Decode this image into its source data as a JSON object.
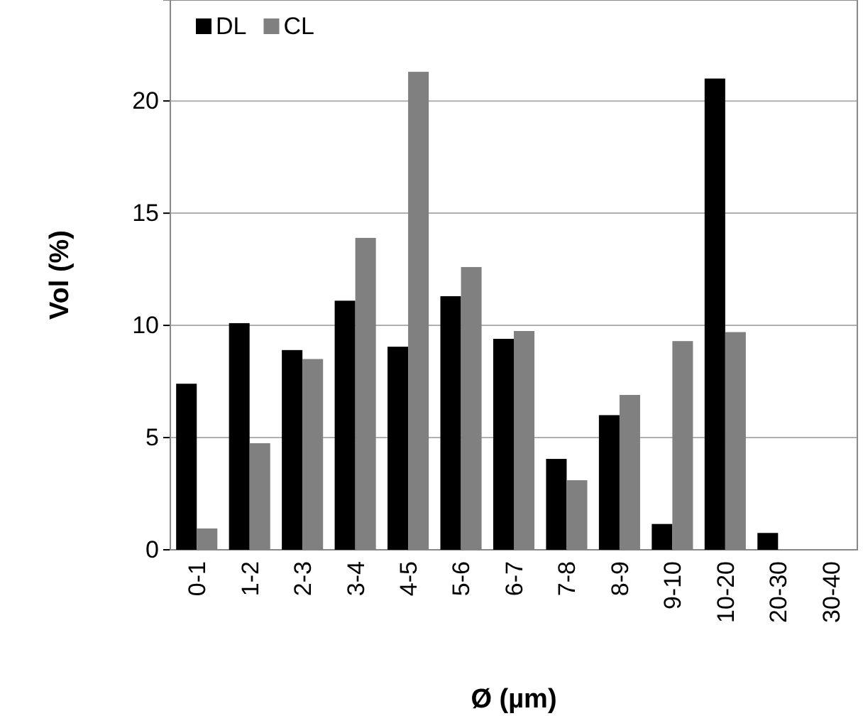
{
  "chart_data": {
    "type": "bar",
    "xlabel": "Ø (µm)",
    "ylabel": "Vol (%)",
    "categories": [
      "0-1",
      "1-2",
      "2-3",
      "3-4",
      "4-5",
      "5-6",
      "6-7",
      "7-8",
      "8-9",
      "9-10",
      "10-20",
      "20-30",
      "30-40"
    ],
    "series": [
      {
        "name": "DL",
        "color": "#000000",
        "values": [
          7.4,
          10.1,
          8.9,
          11.1,
          9.05,
          11.3,
          9.4,
          4.05,
          6.0,
          1.15,
          21.0,
          0.75,
          0
        ]
      },
      {
        "name": "CL",
        "color": "#808080",
        "values": [
          0.95,
          4.75,
          8.5,
          13.9,
          21.3,
          12.6,
          9.75,
          3.1,
          6.9,
          9.3,
          9.7,
          0,
          0
        ]
      }
    ],
    "ylim": [
      0,
      24.5
    ],
    "yticks": [
      0,
      5,
      10,
      15,
      20
    ],
    "grid": "y",
    "legend": "top left"
  }
}
